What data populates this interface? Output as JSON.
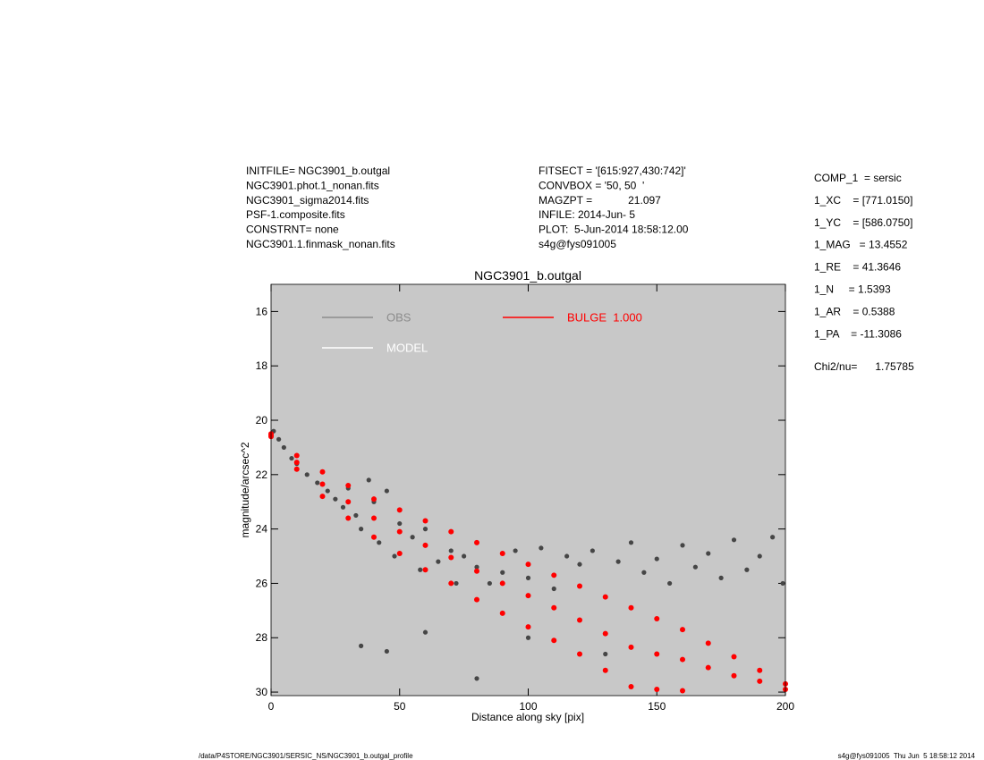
{
  "header": {
    "left": [
      "INITFILE= NGC3901_b.outgal",
      "NGC3901.phot.1_nonan.fits",
      "NGC3901_sigma2014.fits",
      "PSF-1.composite.fits",
      "CONSTRNT= none",
      "NGC3901.1.finmask_nonan.fits"
    ],
    "middle": [
      "FITSECT = '[615:927,430:742]'",
      "CONVBOX = '50, 50  '",
      "MAGZPT =            21.097",
      "INFILE: 2014-Jun- 5",
      "PLOT:  5-Jun-2014 18:58:12.00",
      "s4g@fys091005"
    ],
    "right": [
      "COMP_1  = sersic",
      "1_XC    = [771.0150]",
      "1_YC    = [586.0750]",
      "1_MAG   = 13.4552",
      "1_RE    = 41.3646",
      "1_N     = 1.5393",
      "1_AR    = 0.5388",
      "1_PA    = -11.3086"
    ],
    "chi2": "Chi2/nu=      1.75785"
  },
  "footer": {
    "left": "/data/P4STORE/NGC3901/SERSIC_NS/NGC3901_b.outgal_profile",
    "right": "s4g@fys091005  Thu Jun  5 18:58:12 2014"
  },
  "chart_data": {
    "type": "scatter",
    "title": "NGC3901_b.outgal",
    "xlabel": "Distance along sky [pix]",
    "ylabel": "magnitude/arcsec^2",
    "xlim": [
      0,
      200
    ],
    "ylim": [
      30.13,
      15
    ],
    "xticks": [
      0,
      50,
      100,
      150,
      200
    ],
    "yticks": [
      16,
      18,
      20,
      22,
      24,
      26,
      28,
      30
    ],
    "background": "#c8c8c8",
    "series": [
      {
        "name": "OBS",
        "color": "#464646",
        "legend_color": "#8c8c8c",
        "x": [
          1,
          3,
          5,
          8,
          10,
          14,
          18,
          22,
          25,
          28,
          30,
          33,
          35,
          38,
          40,
          42,
          45,
          48,
          50,
          55,
          58,
          60,
          65,
          70,
          72,
          75,
          80,
          85,
          90,
          95,
          100,
          105,
          110,
          115,
          120,
          125,
          130,
          135,
          140,
          145,
          150,
          155,
          160,
          165,
          170,
          175,
          180,
          185,
          190,
          195,
          199,
          35,
          45,
          60,
          80,
          100,
          130
        ],
        "values": [
          20.4,
          20.7,
          21.0,
          21.4,
          21.6,
          22.0,
          22.3,
          22.6,
          22.9,
          23.2,
          22.5,
          23.5,
          24.0,
          22.2,
          23.0,
          24.5,
          22.6,
          25.0,
          23.8,
          24.3,
          25.5,
          24.0,
          25.2,
          24.8,
          26.0,
          25.0,
          25.4,
          26.0,
          25.6,
          24.8,
          25.8,
          24.7,
          26.2,
          25.0,
          25.3,
          24.8,
          26.5,
          25.2,
          24.5,
          25.6,
          25.1,
          26.0,
          24.6,
          25.4,
          24.9,
          25.8,
          24.4,
          25.5,
          25.0,
          24.3,
          26.0,
          28.3,
          28.5,
          27.8,
          29.5,
          28.0,
          28.6
        ]
      },
      {
        "name": "MODEL",
        "color": "#ffffff",
        "x": [],
        "values": []
      },
      {
        "name": "BULGE  1.000",
        "color": "#ff0000",
        "x": [
          0,
          0,
          0,
          10,
          10,
          10,
          20,
          20,
          20,
          30,
          30,
          30,
          40,
          40,
          40,
          50,
          50,
          50,
          60,
          60,
          60,
          70,
          70,
          70,
          80,
          80,
          80,
          90,
          90,
          90,
          100,
          100,
          100,
          110,
          110,
          110,
          120,
          120,
          120,
          130,
          130,
          130,
          140,
          140,
          140,
          150,
          150,
          150,
          160,
          160,
          160,
          170,
          170,
          180,
          180,
          190,
          190,
          200,
          200
        ],
        "values": [
          20.5,
          20.55,
          20.6,
          21.3,
          21.55,
          21.8,
          21.9,
          22.35,
          22.8,
          22.4,
          23.0,
          23.6,
          22.9,
          23.6,
          24.3,
          23.3,
          24.1,
          24.9,
          23.7,
          24.6,
          25.5,
          24.1,
          25.05,
          26.0,
          24.5,
          25.55,
          26.6,
          24.9,
          26.0,
          27.1,
          25.3,
          26.45,
          27.6,
          25.7,
          26.9,
          28.1,
          26.1,
          27.35,
          28.6,
          26.5,
          27.85,
          29.2,
          26.9,
          28.35,
          29.8,
          27.3,
          28.6,
          29.9,
          27.7,
          28.8,
          29.95,
          28.2,
          29.1,
          28.7,
          29.4,
          29.2,
          29.6,
          29.7,
          29.9
        ]
      }
    ]
  }
}
